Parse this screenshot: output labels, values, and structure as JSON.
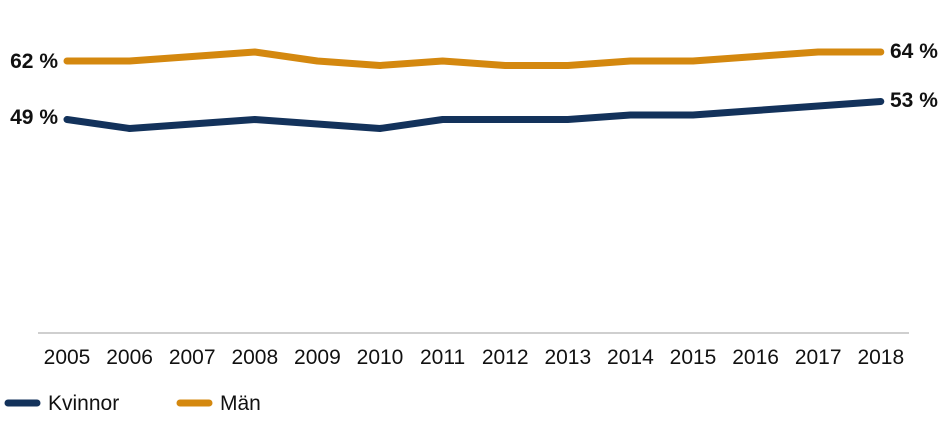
{
  "chart_data": {
    "type": "line",
    "categories": [
      "2005",
      "2006",
      "2007",
      "2008",
      "2009",
      "2010",
      "2011",
      "2012",
      "2013",
      "2014",
      "2015",
      "2016",
      "2017",
      "2018"
    ],
    "series": [
      {
        "name": "Kvinnor",
        "color": "#13325b",
        "values": [
          49,
          47,
          48,
          49,
          48,
          47,
          49,
          49,
          49,
          50,
          50,
          51,
          52,
          53
        ]
      },
      {
        "name": "Män",
        "color": "#d4880f",
        "values": [
          62,
          62,
          63,
          64,
          62,
          61,
          62,
          61,
          61,
          62,
          62,
          63,
          64,
          64
        ]
      }
    ],
    "data_labels": {
      "kvinnor_start": "49 %",
      "kvinnor_end": "53 %",
      "man_start": "62 %",
      "man_end": "64 %"
    },
    "ylim": [
      0,
      75
    ],
    "grid": false,
    "legend_position": "bottom-left"
  }
}
